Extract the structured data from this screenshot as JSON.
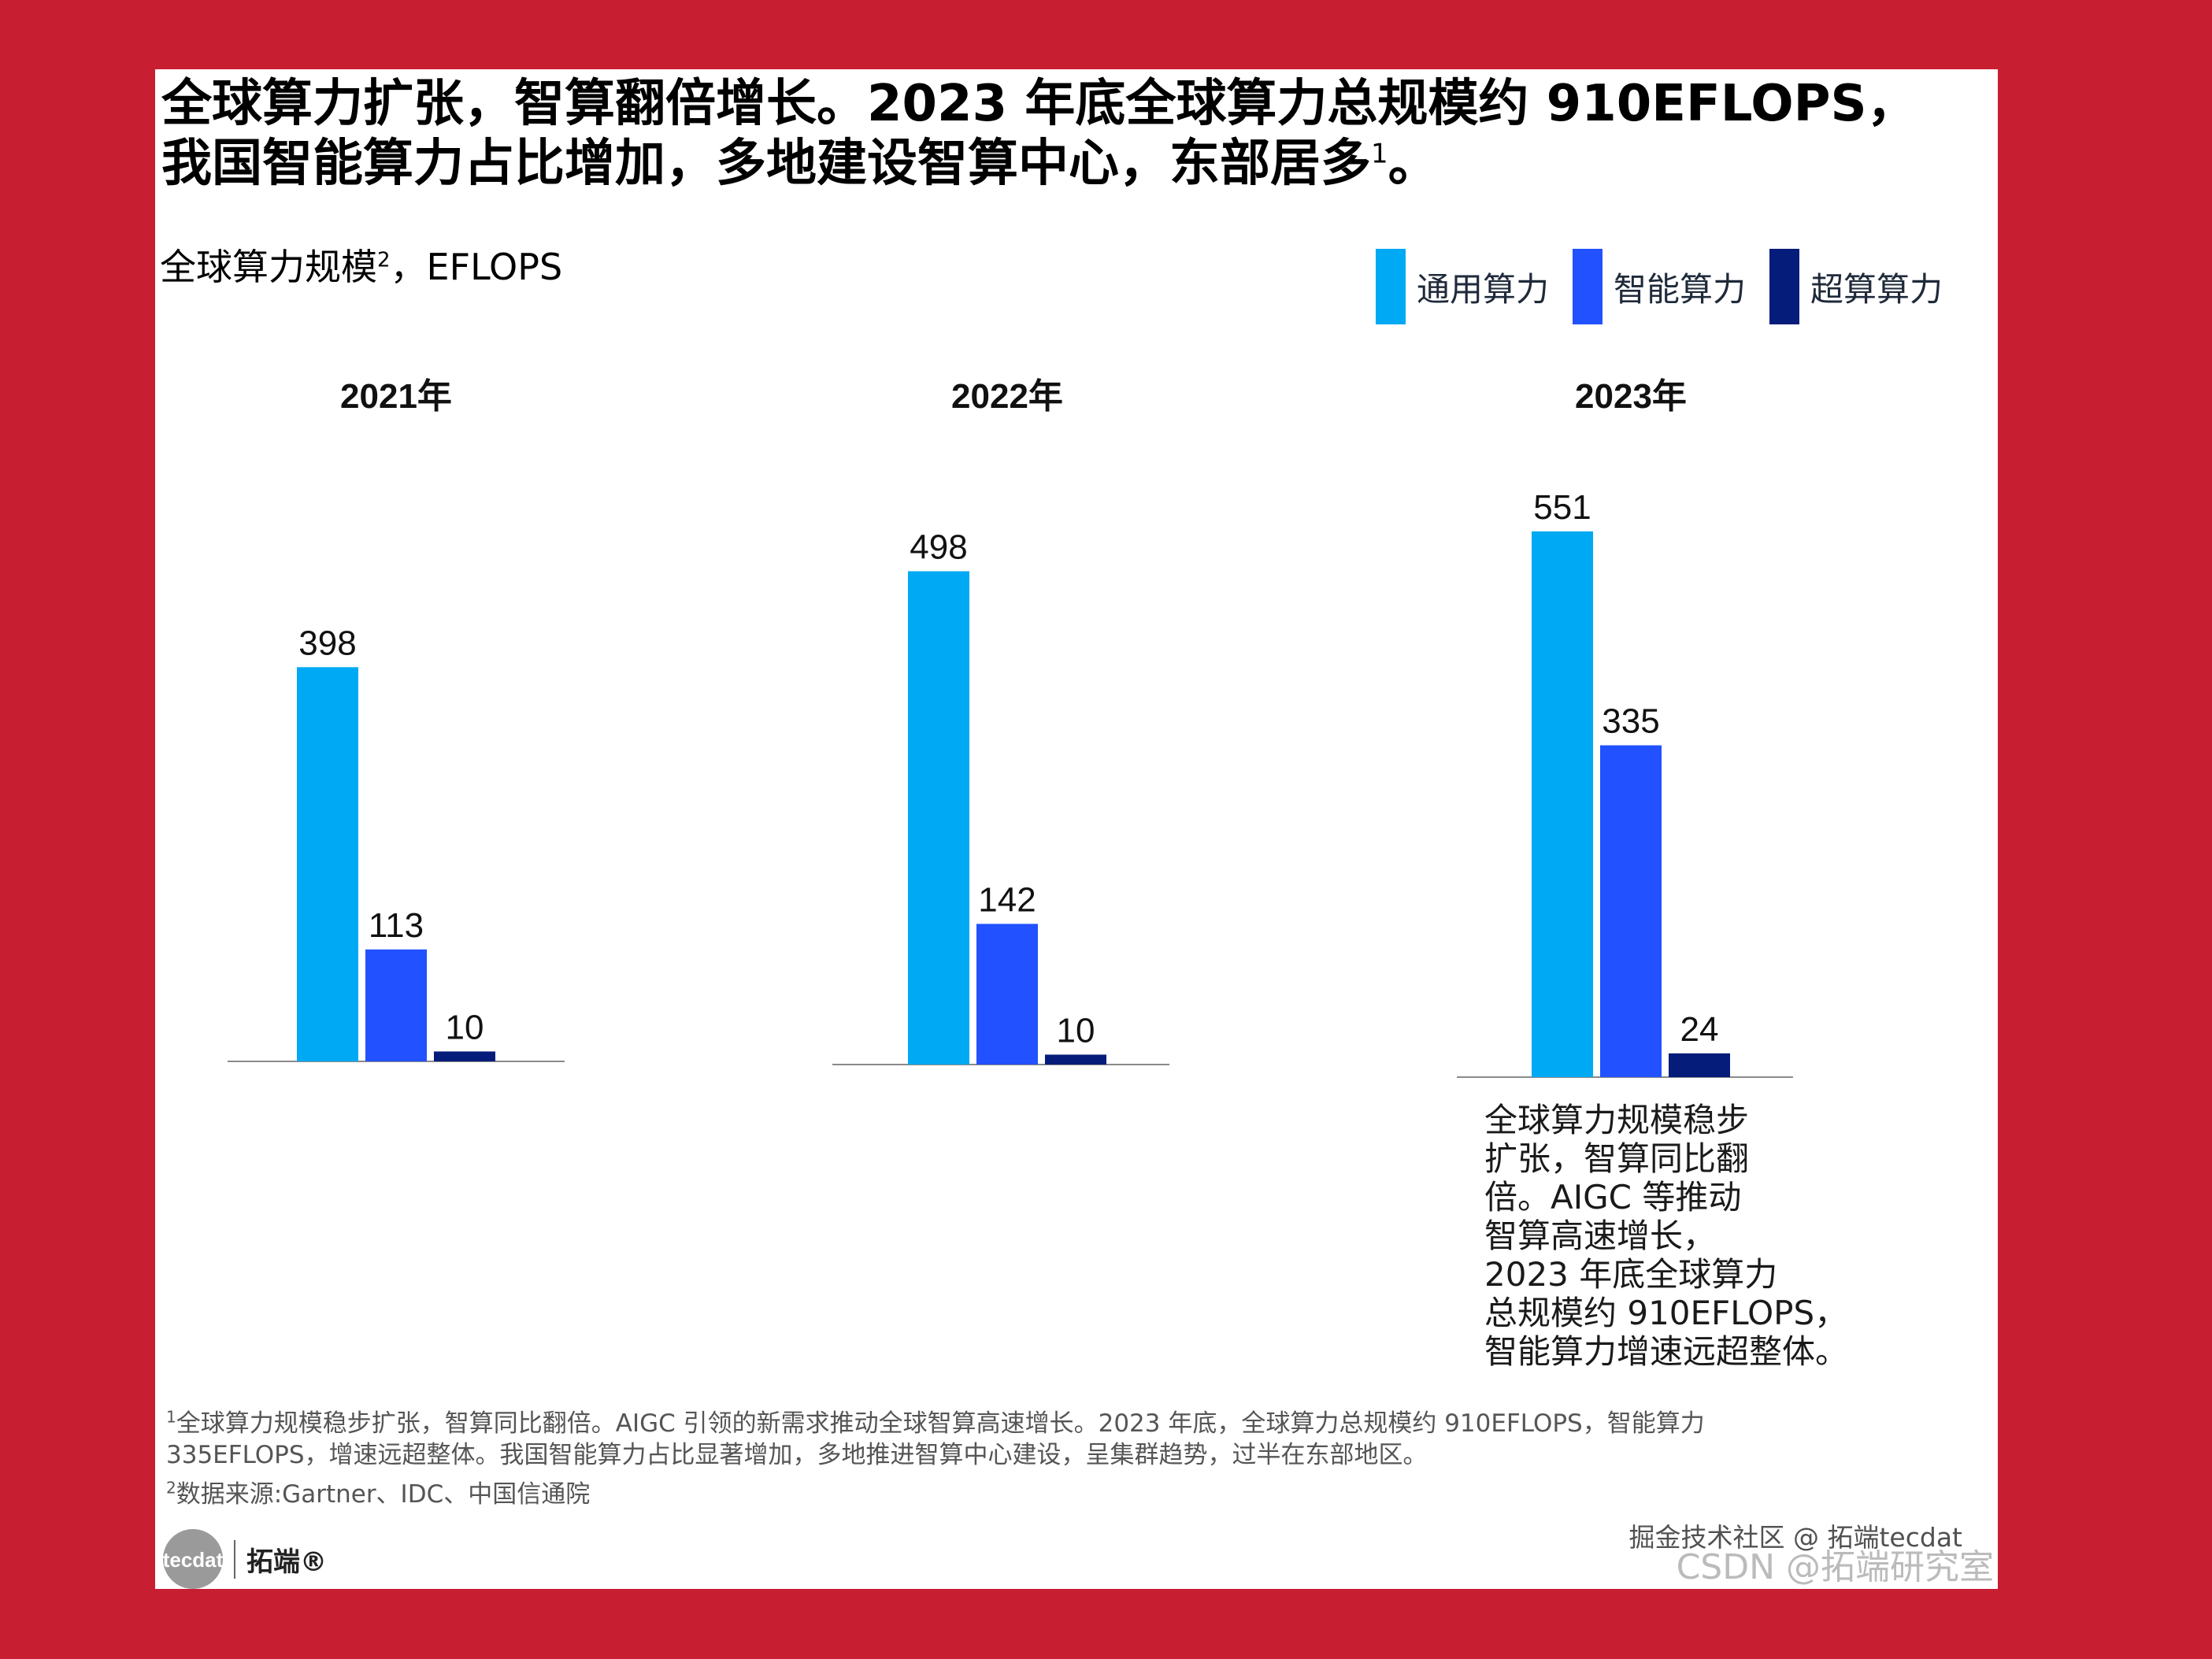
{
  "headline": {
    "line1": "全球算力扩张，智算翻倍增长。2023 年底全球算力总规模约 910EFLOPS，",
    "line2": "我国智能算力占比增加，多地建设智算中心，东部居多",
    "footnote_mark": "1",
    "line2_end": "。"
  },
  "chart_header": {
    "title": "全球算力规模",
    "footnote_mark": "2",
    "unit": "，EFLOPS"
  },
  "legend": [
    {
      "label": "通用算力",
      "color": "#00a9f4"
    },
    {
      "label": "智能算力",
      "color": "#2251ff"
    },
    {
      "label": "超算算力",
      "color": "#051c7a"
    }
  ],
  "chart_data": {
    "type": "bar",
    "title": "全球算力规模，EFLOPS",
    "groups": [
      "2021年",
      "2022年",
      "2023年"
    ],
    "series": [
      {
        "name": "通用算力",
        "values": [
          398,
          498,
          551
        ]
      },
      {
        "name": "智能算力",
        "values": [
          113,
          142,
          335
        ]
      },
      {
        "name": "超算算力",
        "values": [
          10,
          10,
          24
        ]
      }
    ],
    "unit": "EFLOPS"
  },
  "callout": [
    "全球算力规模稳步",
    "扩张，智算同比翻",
    "倍。AIGC 等推动",
    "智算高速增长，",
    "2023 年底全球算力",
    "总规模约 910EFLOPS，",
    "智能算力增速远超整体。"
  ],
  "footnotes": {
    "note1_mark": "1",
    "note1_line1": "全球算力规模稳步扩张，智算同比翻倍。AIGC 引领的新需求推动全球智算高速增长。2023 年底，全球算力总规模约 910EFLOPS，智能算力",
    "note1_line2": "335EFLOPS，增速远超整体。我国智能算力占比显著增加，多地推进智算中心建设，呈集群趋势，过半在东部地区。",
    "note2_mark": "2",
    "note2_text": "数据来源:Gartner、IDC、中国信通院"
  },
  "logo": {
    "mark": "tecdat",
    "name": "拓端®"
  },
  "watermarks": {
    "line1": "掘金技术社区 @ 拓端tecdat",
    "line2": "CSDN @拓端研究室"
  }
}
